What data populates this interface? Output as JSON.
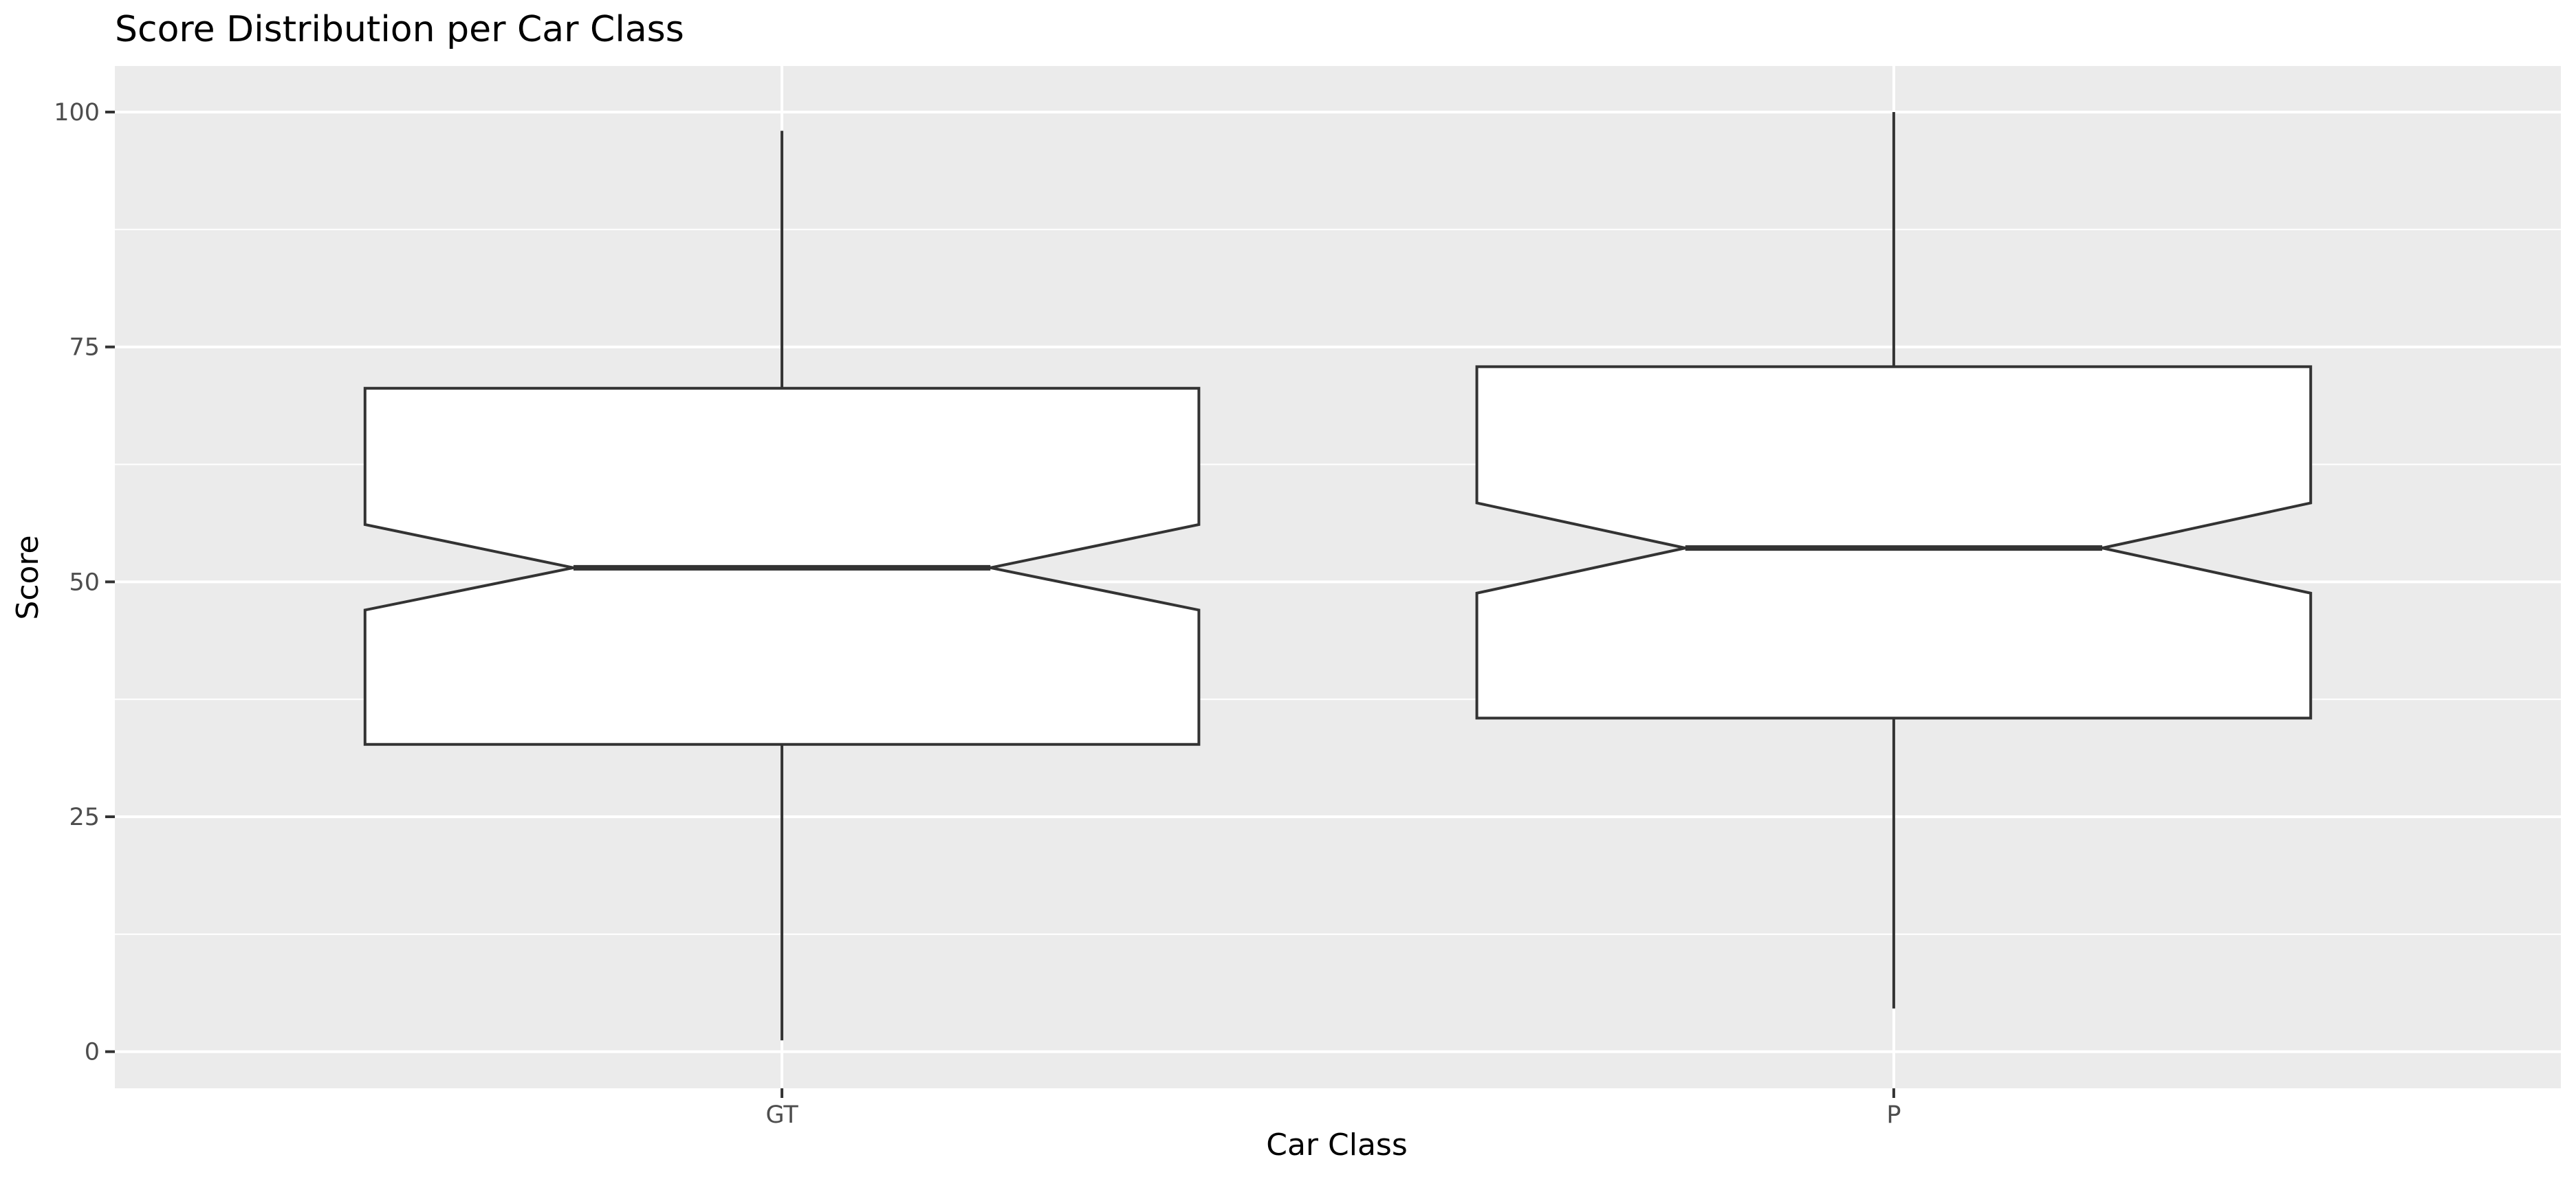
{
  "chart_data": {
    "type": "boxplot",
    "title": "Score Distribution per Car Class",
    "xlabel": "Car Class",
    "ylabel": "Score",
    "categories": [
      "GT",
      "P"
    ],
    "boxes": [
      {
        "category": "GT",
        "min": 1.2,
        "q1": 32.7,
        "median": 51.5,
        "q3": 70.6,
        "max": 98.0,
        "notch_low": 47.0,
        "notch_high": 56.1
      },
      {
        "category": "P",
        "min": 4.6,
        "q1": 35.5,
        "median": 53.6,
        "q3": 72.9,
        "max": 100.0,
        "notch_low": 48.8,
        "notch_high": 58.4
      }
    ],
    "ylim": [
      -3.9,
      104.9
    ],
    "yticks": [
      0,
      25,
      50,
      75,
      100
    ],
    "ytick_labels": [
      "0",
      "25",
      "50",
      "75",
      "100"
    ],
    "grid": true,
    "colors": {
      "panel_bg": "#ebebeb",
      "grid_major": "#ffffff",
      "box_fill": "#ffffff",
      "box_stroke": "#333333",
      "tick_color": "#333333"
    }
  }
}
